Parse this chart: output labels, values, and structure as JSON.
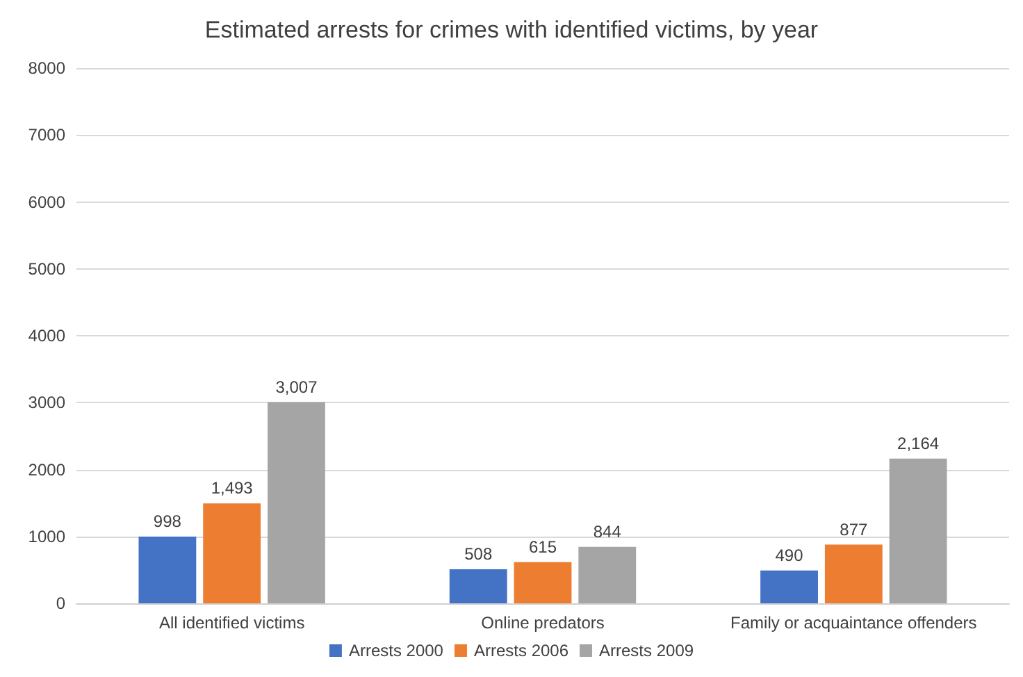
{
  "chart_data": {
    "type": "bar",
    "title": "Estimated arrests for crimes with identified victims, by year",
    "categories": [
      "All identified victims",
      "Online predators",
      "Family or acquaintance offenders"
    ],
    "series": [
      {
        "name": "Arrests 2000",
        "color": "#4472c4",
        "values": [
          998,
          508,
          490
        ],
        "value_labels": [
          "998",
          "508",
          "490"
        ]
      },
      {
        "name": "Arrests 2006",
        "color": "#ed7d31",
        "values": [
          1493,
          615,
          877
        ],
        "value_labels": [
          "1,493",
          "615",
          "877"
        ]
      },
      {
        "name": "Arrests 2009",
        "color": "#a5a5a5",
        "values": [
          3007,
          844,
          2164
        ],
        "value_labels": [
          "3,007",
          "844",
          "2,164"
        ]
      }
    ],
    "ylim": [
      0,
      8000
    ],
    "yticks": [
      0,
      1000,
      2000,
      3000,
      4000,
      5000,
      6000,
      7000,
      8000
    ],
    "grid": "y",
    "legend": "bottom"
  }
}
